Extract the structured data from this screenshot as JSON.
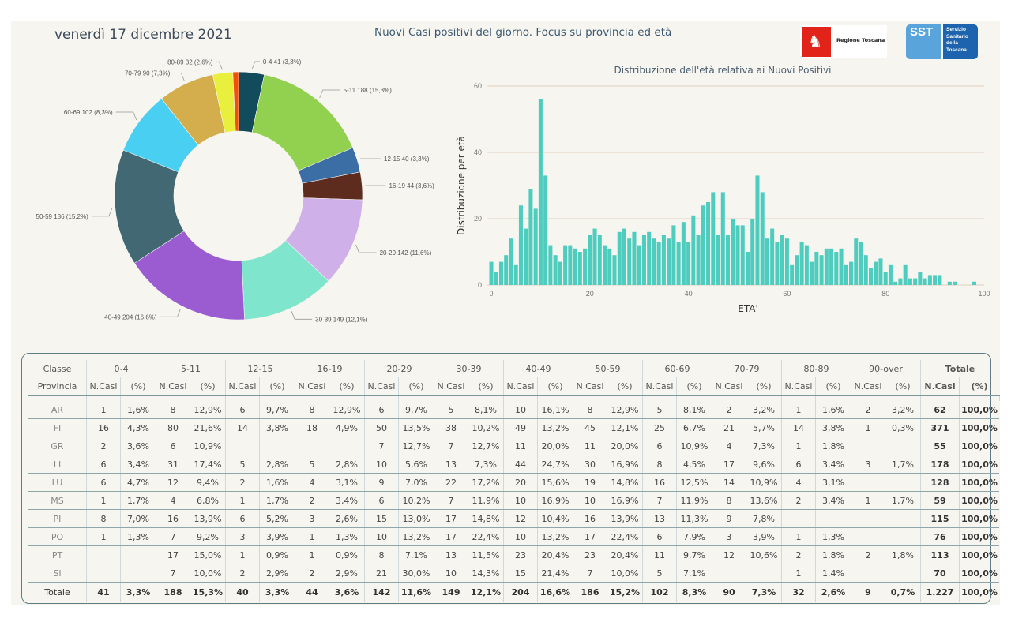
{
  "header": {
    "date": "venerdì 17 dicembre 2021",
    "title": "Nuovi Casi positivi del giorno. Focus su provincia ed età",
    "logos": [
      {
        "name": "regione-toscana-logo",
        "text": "Regione Toscana",
        "icon": "pegasus-icon"
      },
      {
        "name": "sst-logo",
        "abbr": "SST",
        "text": "Servizio\nSanitario\ndella\nToscana"
      }
    ]
  },
  "chart_data": [
    {
      "type": "pie",
      "variant": "donut",
      "title": "",
      "categories": [
        "0-4",
        "5-11",
        "12-15",
        "16-19",
        "20-29",
        "30-39",
        "40-49",
        "50-59",
        "60-69",
        "70-79",
        "80-89",
        "90-over"
      ],
      "values": [
        41,
        188,
        40,
        44,
        142,
        149,
        204,
        186,
        102,
        90,
        32,
        9
      ],
      "labels": [
        "0-4 41 (3,3%)",
        "5-11 188 (15,3%)",
        "12-15 40 (3,3%)",
        "16-19 44 (3,6%)",
        "20-29 142 (11,6%)",
        "30-39 149 (12,1%)",
        "40-49 204 (16,6%)",
        "50-59 186 (15,2%)",
        "60-69 102 (8,3%)",
        "70-79 90 (7,3%)",
        "80-89 32 (2,6%)",
        ""
      ],
      "colors": [
        "#124b5c",
        "#92d14f",
        "#3a6ea5",
        "#5e2c1e",
        "#cfb0e8",
        "#7fe6cd",
        "#9b5bd1",
        "#416873",
        "#48cff2",
        "#d4ad4d",
        "#e8ef3c",
        "#f24f0a"
      ]
    },
    {
      "type": "bar",
      "title": "Distribuzione dell'età relativa ai Nuovi Positivi",
      "xlabel": "ETA'",
      "ylabel": "Distribuzione per età",
      "x": [
        0,
        1,
        2,
        3,
        4,
        5,
        6,
        7,
        8,
        9,
        10,
        11,
        12,
        13,
        14,
        15,
        16,
        17,
        18,
        19,
        20,
        21,
        22,
        23,
        24,
        25,
        26,
        27,
        28,
        29,
        30,
        31,
        32,
        33,
        34,
        35,
        36,
        37,
        38,
        39,
        40,
        41,
        42,
        43,
        44,
        45,
        46,
        47,
        48,
        49,
        50,
        51,
        52,
        53,
        54,
        55,
        56,
        57,
        58,
        59,
        60,
        61,
        62,
        63,
        64,
        65,
        66,
        67,
        68,
        69,
        70,
        71,
        72,
        73,
        74,
        75,
        76,
        77,
        78,
        79,
        80,
        81,
        82,
        83,
        84,
        85,
        86,
        87,
        88,
        89,
        90,
        91,
        92,
        93,
        94,
        95,
        96,
        97,
        98
      ],
      "values": [
        7,
        4,
        7,
        9,
        14,
        6,
        24,
        17,
        29,
        23,
        56,
        33,
        12,
        9,
        7,
        12,
        12,
        11,
        10,
        11,
        15,
        17,
        15,
        12,
        11,
        9,
        16,
        17,
        14,
        16,
        12,
        15,
        16,
        14,
        13,
        15,
        14,
        18,
        13,
        19,
        13,
        21,
        15,
        24,
        25,
        28,
        15,
        28,
        15,
        20,
        18,
        18,
        10,
        20,
        33,
        28,
        14,
        17,
        13,
        15,
        14,
        6,
        9,
        13,
        12,
        7,
        10,
        9,
        11,
        11,
        10,
        11,
        6,
        7,
        14,
        13,
        9,
        5,
        7,
        8,
        4,
        6,
        1,
        2,
        6,
        2,
        2,
        4,
        2,
        3,
        3,
        3,
        0,
        1,
        1,
        0,
        0,
        0,
        1
      ],
      "xlim": [
        0,
        100
      ],
      "ylim": [
        0,
        60
      ],
      "xticks": [
        "0",
        "20",
        "40",
        "60",
        "80",
        "100"
      ],
      "yticks": [
        "0",
        "20",
        "40",
        "60"
      ],
      "grid": true,
      "color": "#4ecdbf",
      "gridcolor": "#e6d6c8"
    }
  ],
  "table": {
    "classe_label": "Classe",
    "provincia_label": "Provincia",
    "groups": [
      "0-4",
      "5-11",
      "12-15",
      "16-19",
      "20-29",
      "30-39",
      "40-49",
      "50-59",
      "60-69",
      "70-79",
      "80-89",
      "90-over",
      "Totale"
    ],
    "sub_n": "N.Casi",
    "sub_p": "(%)",
    "rows": [
      {
        "prov": "AR",
        "cells": [
          "1",
          "1,6%",
          "8",
          "12,9%",
          "6",
          "9,7%",
          "8",
          "12,9%",
          "6",
          "9,7%",
          "5",
          "8,1%",
          "10",
          "16,1%",
          "8",
          "12,9%",
          "5",
          "8,1%",
          "2",
          "3,2%",
          "1",
          "1,6%",
          "2",
          "3,2%",
          "62",
          "100,0%"
        ]
      },
      {
        "prov": "FI",
        "cells": [
          "16",
          "4,3%",
          "80",
          "21,6%",
          "14",
          "3,8%",
          "18",
          "4,9%",
          "50",
          "13,5%",
          "38",
          "10,2%",
          "49",
          "13,2%",
          "45",
          "12,1%",
          "25",
          "6,7%",
          "21",
          "5,7%",
          "14",
          "3,8%",
          "1",
          "0,3%",
          "371",
          "100,0%"
        ]
      },
      {
        "prov": "GR",
        "cells": [
          "2",
          "3,6%",
          "6",
          "10,9%",
          "",
          "",
          "",
          "",
          "7",
          "12,7%",
          "7",
          "12,7%",
          "11",
          "20,0%",
          "11",
          "20,0%",
          "6",
          "10,9%",
          "4",
          "7,3%",
          "1",
          "1,8%",
          "",
          "",
          "55",
          "100,0%"
        ]
      },
      {
        "prov": "LI",
        "cells": [
          "6",
          "3,4%",
          "31",
          "17,4%",
          "5",
          "2,8%",
          "5",
          "2,8%",
          "10",
          "5,6%",
          "13",
          "7,3%",
          "44",
          "24,7%",
          "30",
          "16,9%",
          "8",
          "4,5%",
          "17",
          "9,6%",
          "6",
          "3,4%",
          "3",
          "1,7%",
          "178",
          "100,0%"
        ]
      },
      {
        "prov": "LU",
        "cells": [
          "6",
          "4,7%",
          "12",
          "9,4%",
          "2",
          "1,6%",
          "4",
          "3,1%",
          "9",
          "7,0%",
          "22",
          "17,2%",
          "20",
          "15,6%",
          "19",
          "14,8%",
          "16",
          "12,5%",
          "14",
          "10,9%",
          "4",
          "3,1%",
          "",
          "",
          "128",
          "100,0%"
        ]
      },
      {
        "prov": "MS",
        "cells": [
          "1",
          "1,7%",
          "4",
          "6,8%",
          "1",
          "1,7%",
          "2",
          "3,4%",
          "6",
          "10,2%",
          "7",
          "11,9%",
          "10",
          "16,9%",
          "10",
          "16,9%",
          "7",
          "11,9%",
          "8",
          "13,6%",
          "2",
          "3,4%",
          "1",
          "1,7%",
          "59",
          "100,0%"
        ]
      },
      {
        "prov": "PI",
        "cells": [
          "8",
          "7,0%",
          "16",
          "13,9%",
          "6",
          "5,2%",
          "3",
          "2,6%",
          "15",
          "13,0%",
          "17",
          "14,8%",
          "12",
          "10,4%",
          "16",
          "13,9%",
          "13",
          "11,3%",
          "9",
          "7,8%",
          "",
          "",
          "",
          "",
          "115",
          "100,0%"
        ]
      },
      {
        "prov": "PO",
        "cells": [
          "1",
          "1,3%",
          "7",
          "9,2%",
          "3",
          "3,9%",
          "1",
          "1,3%",
          "10",
          "13,2%",
          "17",
          "22,4%",
          "10",
          "13,2%",
          "17",
          "22,4%",
          "6",
          "7,9%",
          "3",
          "3,9%",
          "1",
          "1,3%",
          "",
          "",
          "76",
          "100,0%"
        ]
      },
      {
        "prov": "PT",
        "cells": [
          "",
          "",
          "17",
          "15,0%",
          "1",
          "0,9%",
          "1",
          "0,9%",
          "8",
          "7,1%",
          "13",
          "11,5%",
          "23",
          "20,4%",
          "23",
          "20,4%",
          "11",
          "9,7%",
          "12",
          "10,6%",
          "2",
          "1,8%",
          "2",
          "1,8%",
          "113",
          "100,0%"
        ]
      },
      {
        "prov": "SI",
        "cells": [
          "",
          "",
          "7",
          "10,0%",
          "2",
          "2,9%",
          "2",
          "2,9%",
          "21",
          "30,0%",
          "10",
          "14,3%",
          "15",
          "21,4%",
          "7",
          "10,0%",
          "5",
          "7,1%",
          "",
          "",
          "1",
          "1,4%",
          "",
          "",
          "70",
          "100,0%"
        ]
      }
    ],
    "total": {
      "prov": "Totale",
      "cells": [
        "41",
        "3,3%",
        "188",
        "15,3%",
        "40",
        "3,3%",
        "44",
        "3,6%",
        "142",
        "11,6%",
        "149",
        "12,1%",
        "204",
        "16,6%",
        "186",
        "15,2%",
        "102",
        "8,3%",
        "90",
        "7,3%",
        "32",
        "2,6%",
        "9",
        "0,7%",
        "1.227",
        "100,0%"
      ]
    }
  }
}
